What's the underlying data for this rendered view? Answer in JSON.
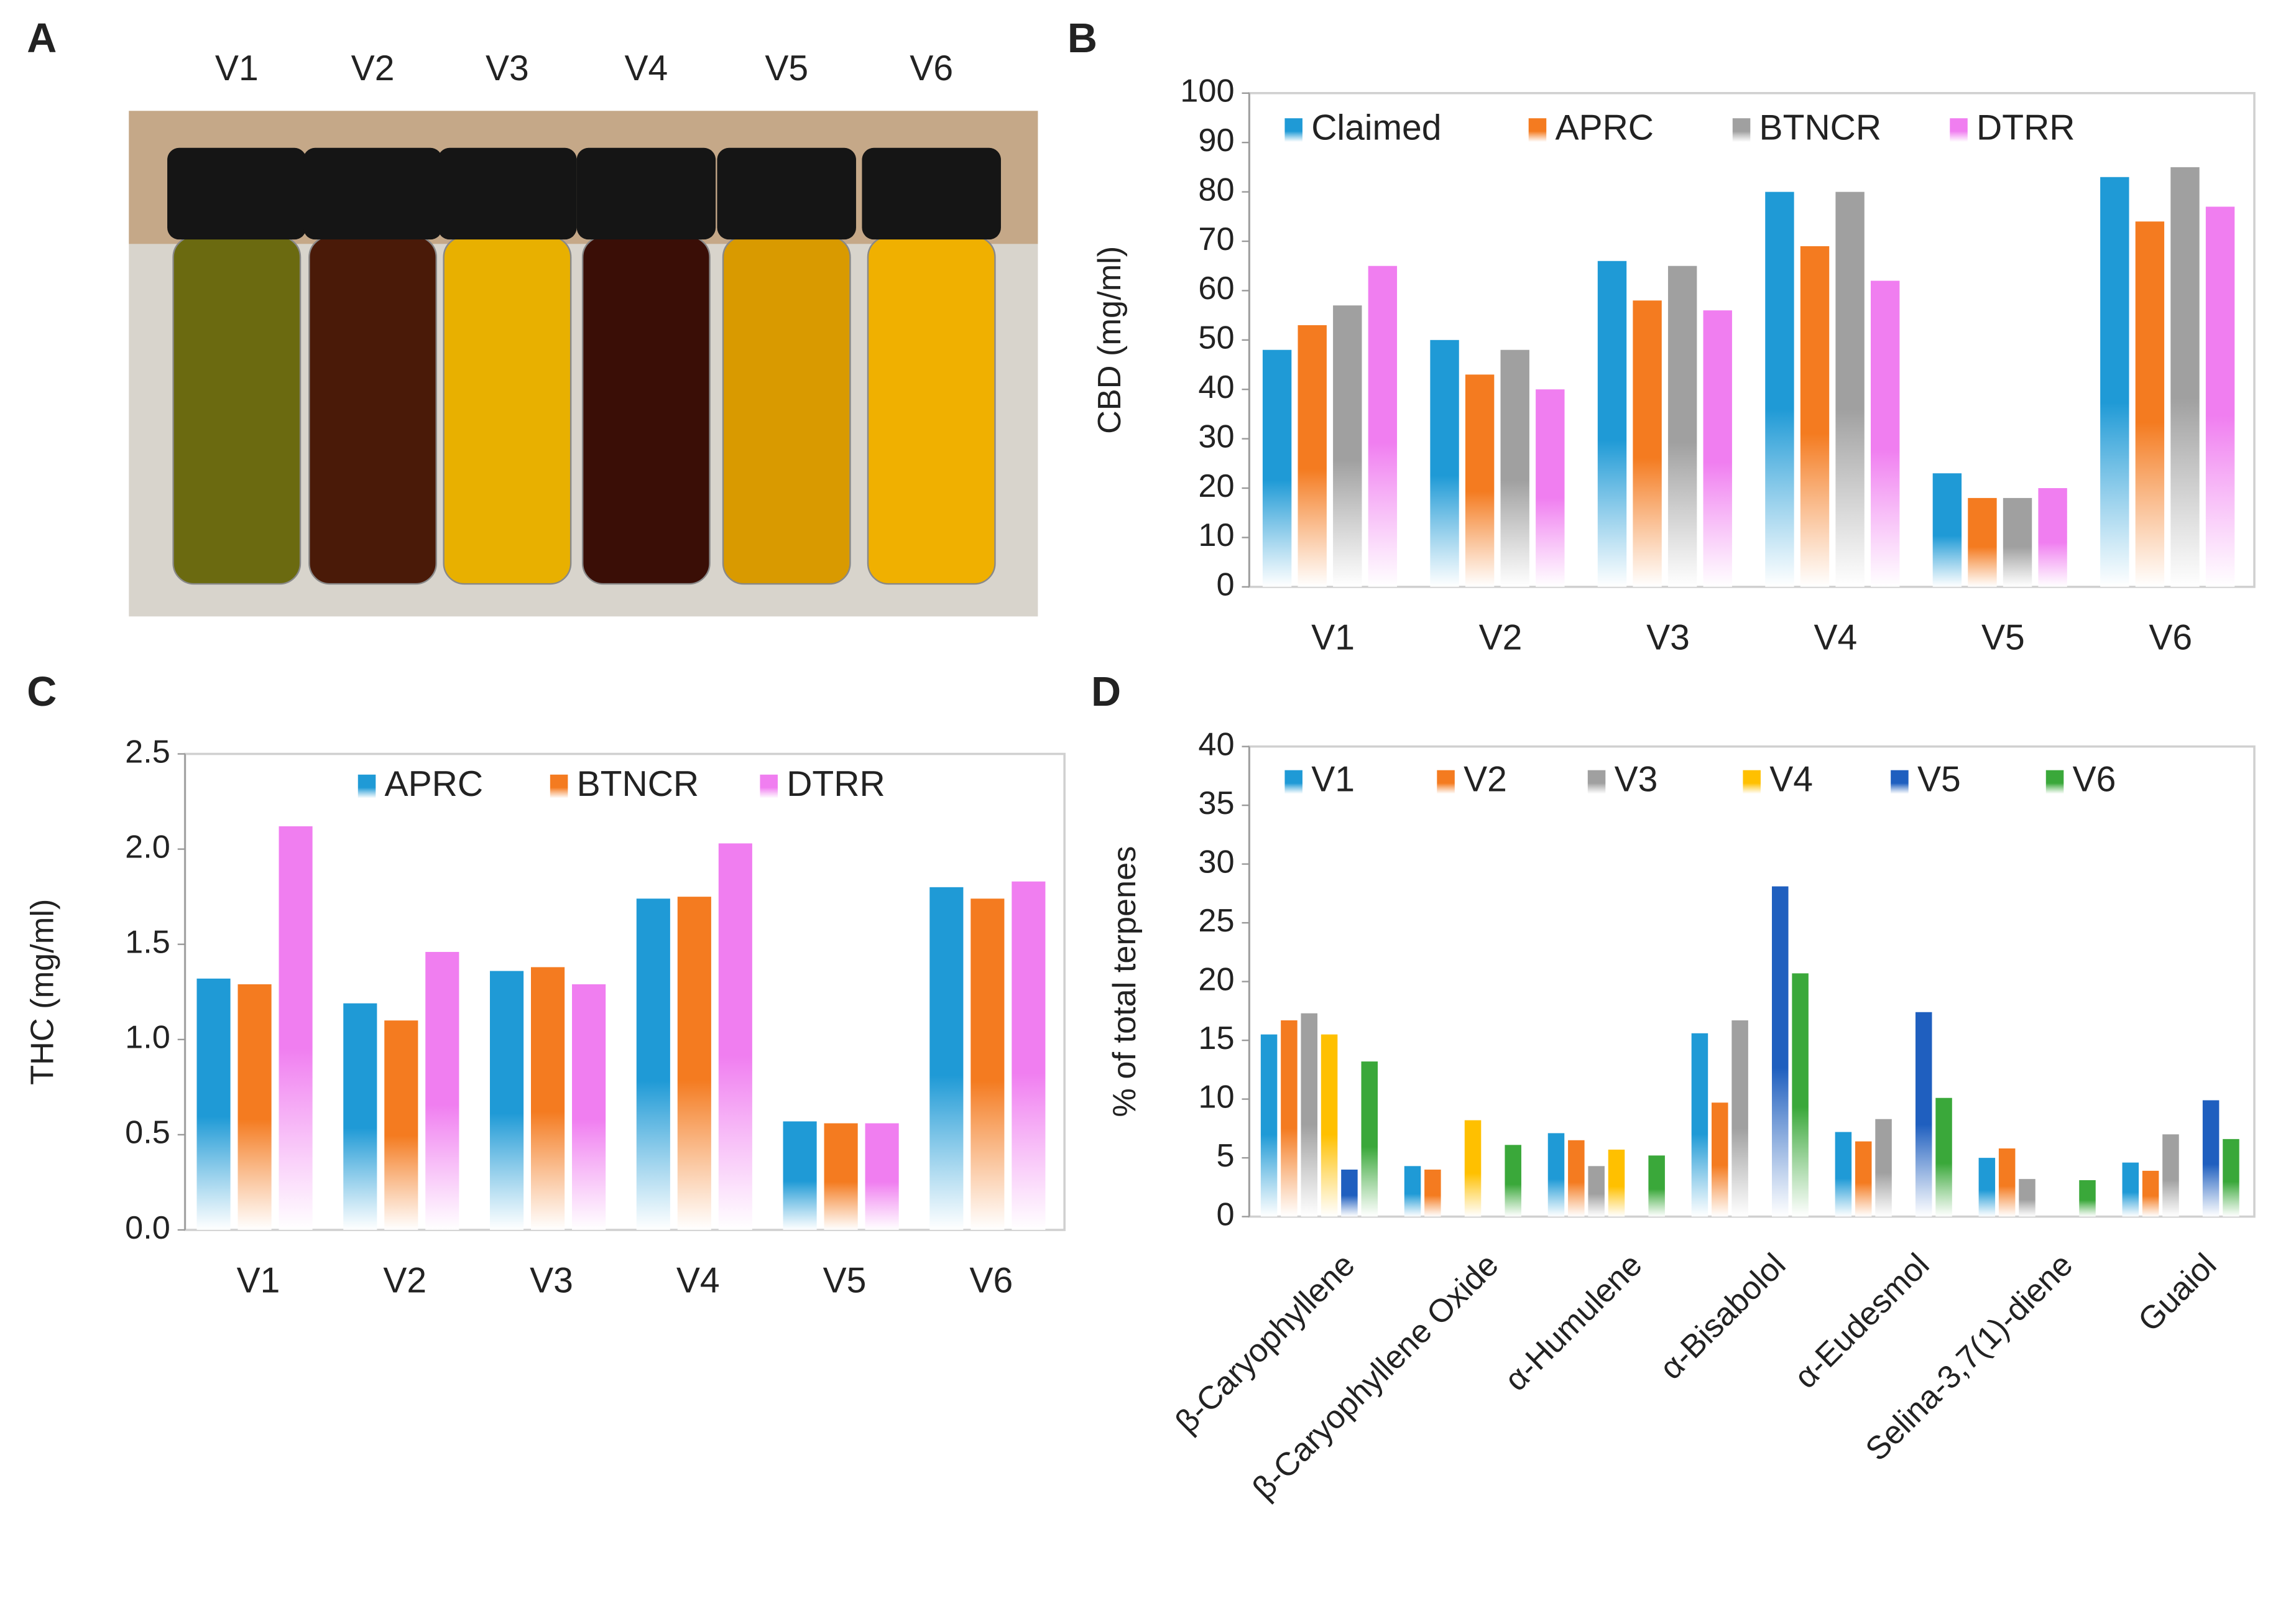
{
  "panel_labels": [
    "A",
    "B",
    "C",
    "D"
  ],
  "photo": {
    "labels": [
      "V1",
      "V2",
      "V3",
      "V4",
      "V5",
      "V6"
    ]
  },
  "chart_data": [
    {
      "type": "bar",
      "ylabel": "CBD  (mg/ml)",
      "categories": [
        "V1",
        "V2",
        "V3",
        "V4",
        "V5",
        "V6"
      ],
      "series": [
        {
          "name": "Claimed",
          "color": "#1f9ad6",
          "values": [
            48,
            50,
            66,
            80,
            23,
            83
          ]
        },
        {
          "name": "APRC",
          "color": "#f47b20",
          "values": [
            53,
            43,
            58,
            69,
            18,
            74
          ]
        },
        {
          "name": "BTNCR",
          "color": "#a0a0a0",
          "values": [
            57,
            48,
            65,
            80,
            18,
            85
          ]
        },
        {
          "name": "DTRR",
          "color": "#f07ef0",
          "values": [
            65,
            40,
            56,
            62,
            20,
            77
          ]
        }
      ],
      "ylim": [
        0,
        100
      ],
      "yticks": [
        0,
        10,
        20,
        30,
        40,
        50,
        60,
        70,
        80,
        90,
        100
      ]
    },
    {
      "type": "bar",
      "ylabel": "THC  (mg/ml)",
      "categories": [
        "V1",
        "V2",
        "V3",
        "V4",
        "V5",
        "V6"
      ],
      "series": [
        {
          "name": "APRC",
          "color": "#1f9ad6",
          "values": [
            1.32,
            1.19,
            1.36,
            1.74,
            0.57,
            1.8
          ]
        },
        {
          "name": "BTNCR",
          "color": "#f47b20",
          "values": [
            1.29,
            1.1,
            1.38,
            1.75,
            0.56,
            1.74
          ]
        },
        {
          "name": "DTRR",
          "color": "#f07ef0",
          "values": [
            2.12,
            1.46,
            1.29,
            2.03,
            0.56,
            1.83
          ]
        }
      ],
      "ylim": [
        0,
        2.5
      ],
      "yticks": [
        {
          "value": 0,
          "label": "0.0"
        },
        0.5,
        {
          "value": 1,
          "label": "1.0"
        },
        1.5,
        {
          "value": 2,
          "label": "2.0"
        },
        2.5
      ]
    },
    {
      "type": "bar",
      "ylabel": "% of total terpenes",
      "categories": [
        "β-Caryophyllene",
        "β-Caryophyllene  Oxide",
        "α-Humulene",
        "α-Bisabolol",
        "α-Eudesmol",
        "Selina-3,7(1)-diene",
        "Guaiol"
      ],
      "series": [
        {
          "name": "V1",
          "color": "#1f9ad6",
          "values": [
            15.5,
            4.3,
            7.1,
            15.6,
            7.2,
            5.0,
            4.6
          ]
        },
        {
          "name": "V2",
          "color": "#f47b20",
          "values": [
            16.7,
            4.0,
            6.5,
            9.7,
            6.4,
            5.8,
            3.9
          ]
        },
        {
          "name": "V3",
          "color": "#a0a0a0",
          "values": [
            17.3,
            0,
            4.3,
            16.7,
            8.3,
            3.2,
            7.0
          ]
        },
        {
          "name": "V4",
          "color": "#ffc000",
          "values": [
            15.5,
            8.2,
            5.7,
            0,
            0,
            0,
            0
          ]
        },
        {
          "name": "V5",
          "color": "#1f5fbf",
          "values": [
            4,
            0,
            0,
            28.1,
            17.4,
            0,
            9.9
          ]
        },
        {
          "name": "V6",
          "color": "#3aa83a",
          "values": [
            13.2,
            6.1,
            5.2,
            20.7,
            10.1,
            3.1,
            6.6
          ]
        }
      ],
      "ylim": [
        0,
        40
      ],
      "yticks": [
        0,
        5,
        10,
        15,
        20,
        25,
        30,
        35,
        40
      ]
    }
  ]
}
